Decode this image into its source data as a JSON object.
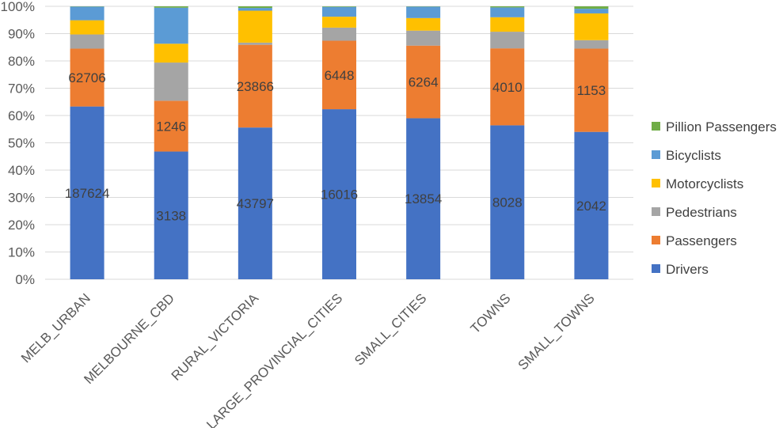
{
  "chart_data": {
    "type": "bar",
    "stacked": "percent",
    "categories": [
      "MELB_URBAN",
      "MELBOURNE_CBD",
      "RURAL_VICTORIA",
      "LARGE_PROVINCIAL_CITIES",
      "SMALL_CITIES",
      "TOWNS",
      "SMALL_TOWNS"
    ],
    "ylim": [
      0,
      100
    ],
    "yticks": [
      "0%",
      "10%",
      "20%",
      "30%",
      "40%",
      "50%",
      "60%",
      "70%",
      "80%",
      "90%",
      "100%"
    ],
    "grid": true,
    "legend_position": "right",
    "series": [
      {
        "name": "Drivers",
        "color": "#4472C4",
        "percent": [
          63.3,
          46.8,
          55.6,
          62.3,
          59.0,
          56.4,
          54.0
        ],
        "labels": [
          "187624",
          "3138",
          "43797",
          "16016",
          "13854",
          "8028",
          "2042"
        ]
      },
      {
        "name": "Passengers",
        "color": "#ED7D31",
        "percent": [
          21.2,
          18.6,
          30.3,
          25.1,
          26.6,
          28.2,
          30.5
        ],
        "labels": [
          "62706",
          "1246",
          "23866",
          "6448",
          "6264",
          "4010",
          "1153"
        ]
      },
      {
        "name": "Pedestrians",
        "color": "#A5A5A5",
        "percent": [
          5.2,
          14.0,
          0.8,
          4.8,
          5.5,
          6.1,
          3.1
        ],
        "labels": []
      },
      {
        "name": "Motorcyclists",
        "color": "#FFC000",
        "percent": [
          5.2,
          6.9,
          11.7,
          4.0,
          4.6,
          5.3,
          9.8
        ],
        "labels": []
      },
      {
        "name": "Bicyclists",
        "color": "#5B9BD5",
        "percent": [
          5.0,
          13.2,
          1.0,
          3.6,
          4.2,
          3.6,
          1.7
        ],
        "labels": []
      },
      {
        "name": "Pillion Passengers",
        "color": "#70AD47",
        "percent": [
          0.1,
          0.5,
          0.6,
          0.2,
          0.1,
          0.4,
          0.9
        ],
        "labels": []
      }
    ]
  }
}
